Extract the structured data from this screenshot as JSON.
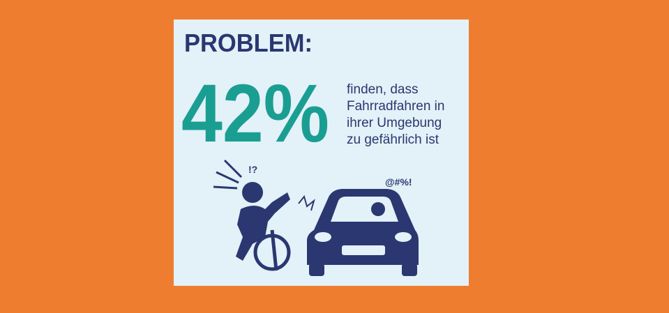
{
  "header": {
    "title": "PROBLEM:"
  },
  "stat": {
    "value": "42%",
    "lines": [
      "finden, dass",
      "Fahrradfahren in",
      "ihrer Umgebung",
      "zu gefährlich ist"
    ]
  },
  "illustration": {
    "cyclist_exclamation": "!?",
    "driver_curse": "@#%!"
  }
}
